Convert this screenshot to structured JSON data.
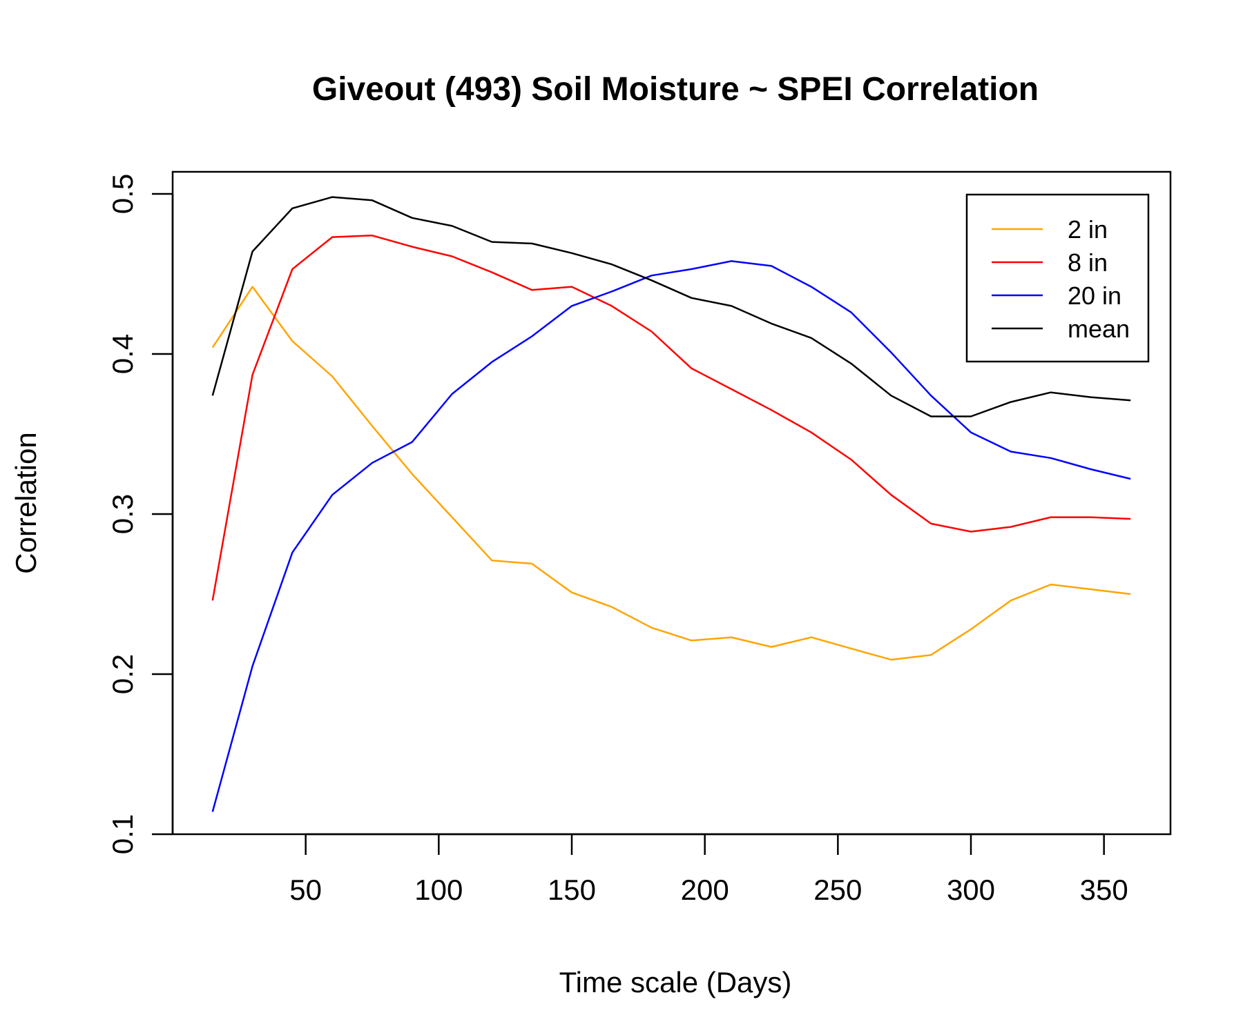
{
  "chart_data": {
    "type": "line",
    "title": "Giveout (493) Soil Moisture ~ SPEI Correlation",
    "xlabel": "Time scale (Days)",
    "ylabel": "Correlation",
    "xlim": [
      0,
      375
    ],
    "ylim": [
      0.1,
      0.5
    ],
    "xticks": [
      50,
      100,
      150,
      200,
      250,
      300,
      350
    ],
    "yticks": [
      0.1,
      0.2,
      0.3,
      0.4,
      0.5
    ],
    "grid": false,
    "legend_position": "top-right",
    "x": [
      15,
      30,
      45,
      60,
      75,
      90,
      105,
      120,
      135,
      150,
      165,
      180,
      195,
      210,
      225,
      240,
      255,
      270,
      285,
      300,
      315,
      330,
      345,
      360
    ],
    "series": [
      {
        "name": "2 in",
        "color": "#FFA500",
        "values": [
          0.404,
          0.442,
          0.408,
          0.386,
          0.355,
          0.325,
          0.298,
          0.271,
          0.269,
          0.251,
          0.242,
          0.229,
          0.221,
          0.223,
          0.217,
          0.223,
          0.216,
          0.209,
          0.212,
          0.228,
          0.246,
          0.256,
          0.253,
          0.25
        ]
      },
      {
        "name": "8 in",
        "color": "#FF0000",
        "values": [
          0.246,
          0.387,
          0.453,
          0.473,
          0.474,
          0.467,
          0.461,
          0.451,
          0.44,
          0.442,
          0.43,
          0.414,
          0.391,
          0.378,
          0.365,
          0.351,
          0.334,
          0.312,
          0.294,
          0.289,
          0.292,
          0.298,
          0.298,
          0.297
        ]
      },
      {
        "name": "20 in",
        "color": "#0000FF",
        "values": [
          0.114,
          0.205,
          0.276,
          0.312,
          0.332,
          0.345,
          0.375,
          0.395,
          0.411,
          0.43,
          0.439,
          0.449,
          0.453,
          0.458,
          0.455,
          0.442,
          0.426,
          0.401,
          0.374,
          0.351,
          0.339,
          0.335,
          0.328,
          0.322
        ]
      },
      {
        "name": "mean",
        "color": "#000000",
        "values": [
          0.374,
          0.464,
          0.491,
          0.498,
          0.496,
          0.485,
          0.48,
          0.47,
          0.469,
          0.463,
          0.456,
          0.446,
          0.435,
          0.43,
          0.419,
          0.41,
          0.394,
          0.374,
          0.361,
          0.361,
          0.37,
          0.376,
          0.373,
          0.371
        ]
      }
    ]
  }
}
